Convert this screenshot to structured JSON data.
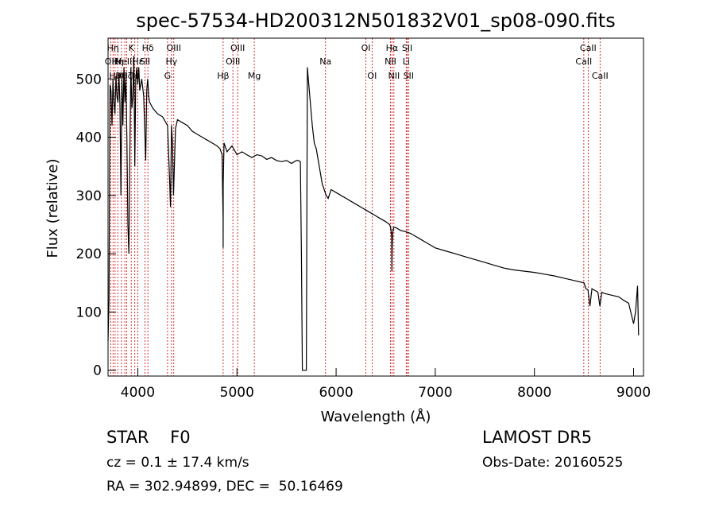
{
  "chart_data": {
    "type": "line",
    "title": "spec-57534-HD200312N501832V01_sp08-090.fits",
    "xlabel": "Wavelength (Å)",
    "ylabel": "Flux (relative)",
    "xlim": [
      3700,
      9100
    ],
    "ylim": [
      -10,
      570
    ],
    "xticks": [
      4000,
      5000,
      6000,
      7000,
      8000,
      9000
    ],
    "yticks": [
      0,
      100,
      200,
      300,
      400,
      500
    ],
    "grid": false,
    "line_color": "#000000",
    "marker_color": "#cc0000",
    "series": [
      {
        "x": [
          3700,
          3710,
          3720,
          3730,
          3740,
          3750,
          3760,
          3770,
          3780,
          3790,
          3800,
          3810,
          3820,
          3830,
          3840,
          3850,
          3860,
          3870,
          3880,
          3890,
          3900,
          3910,
          3920,
          3930,
          3940,
          3950,
          3960,
          3970,
          3980,
          3990,
          4000,
          4010,
          4020,
          4040,
          4060,
          4080,
          4090,
          4100,
          4110,
          4120,
          4150,
          4200,
          4250,
          4300,
          4320,
          4330,
          4340,
          4350,
          4360,
          4380,
          4400,
          4450,
          4500,
          4550,
          4600,
          4650,
          4700,
          4750,
          4800,
          4830,
          4850,
          4860,
          4861,
          4862,
          4870,
          4880,
          4900,
          4950,
          5000,
          5050,
          5100,
          5150,
          5200,
          5250,
          5300,
          5350,
          5400,
          5450,
          5500,
          5550,
          5600,
          5620,
          5640,
          5650,
          5660,
          5670,
          5680,
          5690,
          5700,
          5710,
          5720,
          5740,
          5760,
          5780,
          5800,
          5820,
          5840,
          5860,
          5880,
          5900,
          5920,
          5950,
          6000,
          6050,
          6100,
          6150,
          6200,
          6250,
          6300,
          6350,
          6400,
          6450,
          6500,
          6540,
          6550,
          6560,
          6563,
          6566,
          6570,
          6580,
          6600,
          6650,
          6700,
          6750,
          6800,
          6850,
          6900,
          6950,
          7000,
          7100,
          7200,
          7300,
          7400,
          7500,
          7600,
          7700,
          7800,
          7900,
          8000,
          8100,
          8200,
          8300,
          8400,
          8500,
          8520,
          8540,
          8560,
          8580,
          8600,
          8620,
          8640,
          8660,
          8680,
          8700,
          8750,
          8800,
          8850,
          8900,
          8950,
          9000,
          9020,
          9040,
          9050
        ],
        "y": [
          50,
          120,
          490,
          480,
          420,
          500,
          460,
          440,
          505,
          470,
          460,
          510,
          455,
          300,
          500,
          420,
          520,
          460,
          500,
          400,
          250,
          200,
          380,
          520,
          450,
          470,
          540,
          350,
          500,
          520,
          490,
          520,
          480,
          500,
          470,
          360,
          480,
          500,
          470,
          460,
          450,
          440,
          435,
          420,
          330,
          280,
          420,
          390,
          300,
          415,
          430,
          425,
          420,
          410,
          405,
          400,
          395,
          390,
          385,
          380,
          370,
          260,
          210,
          320,
          390,
          385,
          375,
          385,
          370,
          375,
          370,
          365,
          370,
          368,
          362,
          365,
          360,
          358,
          360,
          355,
          360,
          360,
          358,
          200,
          0,
          0,
          0,
          0,
          0,
          520,
          500,
          460,
          420,
          390,
          380,
          360,
          340,
          320,
          310,
          300,
          295,
          310,
          305,
          300,
          295,
          290,
          285,
          280,
          275,
          270,
          265,
          260,
          255,
          250,
          245,
          230,
          170,
          210,
          235,
          245,
          245,
          240,
          238,
          235,
          230,
          225,
          220,
          215,
          210,
          205,
          200,
          195,
          190,
          185,
          180,
          175,
          172,
          170,
          168,
          165,
          162,
          158,
          154,
          150,
          140,
          138,
          110,
          140,
          138,
          136,
          134,
          110,
          134,
          132,
          130,
          128,
          126,
          120,
          115,
          80,
          100,
          145,
          60
        ],
        "name": ""
      }
    ],
    "lines": [
      {
        "x": 3727,
        "label": "OII",
        "row": 2
      },
      {
        "x": 3750,
        "label": "Hη",
        "row": 1
      },
      {
        "x": 3771,
        "label": "Hθ",
        "row": 3
      },
      {
        "x": 3798,
        "label": "Hη",
        "row": 2
      },
      {
        "x": 3835,
        "label": "Hθ",
        "row": 3
      },
      {
        "x": 3869,
        "label": "NeIII",
        "row": 2
      },
      {
        "x": 3889,
        "label": "Hζ",
        "row": 3
      },
      {
        "x": 3934,
        "label": "K",
        "row": 1
      },
      {
        "x": 3970,
        "label": "H",
        "row": 3
      },
      {
        "x": 4000,
        "label": "Hε",
        "row": 2
      },
      {
        "x": 4072,
        "label": "SII",
        "row": 2
      },
      {
        "x": 4102,
        "label": "Hδ",
        "row": 1
      },
      {
        "x": 4300,
        "label": "G",
        "row": 3
      },
      {
        "x": 4340,
        "label": "Hγ",
        "row": 2
      },
      {
        "x": 4363,
        "label": "OIII",
        "row": 1
      },
      {
        "x": 4861,
        "label": "Hβ",
        "row": 3
      },
      {
        "x": 4959,
        "label": "OIII",
        "row": 2
      },
      {
        "x": 5007,
        "label": "OIII",
        "row": 1
      },
      {
        "x": 5175,
        "label": "Mg",
        "row": 3
      },
      {
        "x": 5893,
        "label": "Na",
        "row": 2
      },
      {
        "x": 6300,
        "label": "OI",
        "row": 1
      },
      {
        "x": 6363,
        "label": "OI",
        "row": 3
      },
      {
        "x": 6548,
        "label": "NII",
        "row": 2
      },
      {
        "x": 6563,
        "label": "Hα",
        "row": 1
      },
      {
        "x": 6583,
        "label": "NII",
        "row": 3
      },
      {
        "x": 6707,
        "label": "Li",
        "row": 2
      },
      {
        "x": 6717,
        "label": "SII",
        "row": 1
      },
      {
        "x": 6731,
        "label": "SII",
        "row": 3
      },
      {
        "x": 8498,
        "label": "CaII",
        "row": 2
      },
      {
        "x": 8542,
        "label": "CaII",
        "row": 1
      },
      {
        "x": 8662,
        "label": "CaII",
        "row": 3
      }
    ]
  },
  "info": {
    "class_line": "STAR    F0",
    "survey": "LAMOST DR5",
    "cz": "cz = 0.1 ± 17.4 km/s",
    "obs_date": "Obs-Date: 20160525",
    "radec": "RA = 302.94899, DEC =  50.16469"
  }
}
